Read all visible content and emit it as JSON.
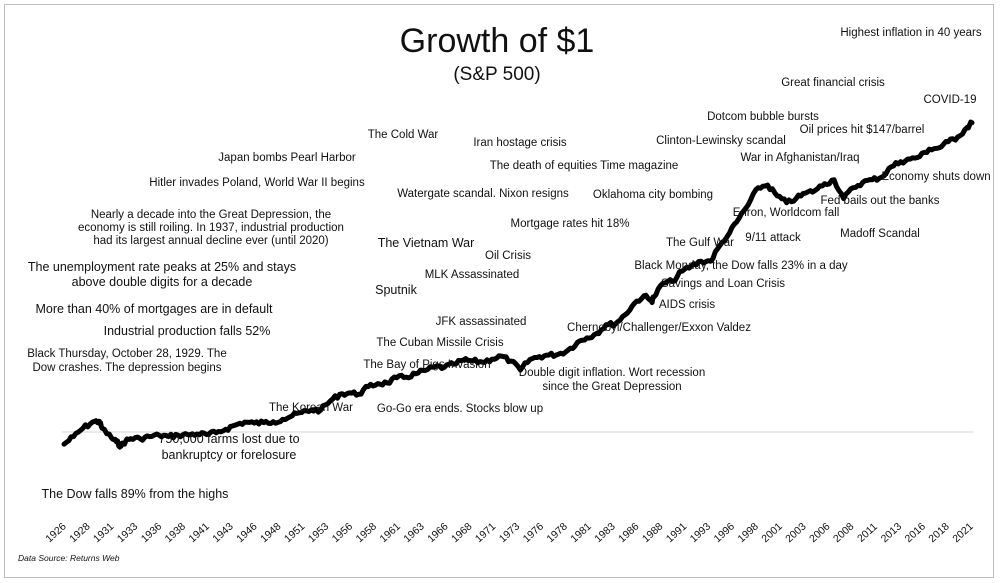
{
  "chart_data": {
    "type": "line",
    "title": "Growth of $1",
    "subtitle": "(S&P 500)",
    "xlabel": "",
    "ylabel": "",
    "grid": false,
    "source": "Data Source: Returns Web",
    "x_tick_labels": [
      "1926",
      "1928",
      "1931",
      "1933",
      "1936",
      "1938",
      "1941",
      "1943",
      "1946",
      "1948",
      "1951",
      "1953",
      "1956",
      "1958",
      "1961",
      "1963",
      "1966",
      "1968",
      "1971",
      "1973",
      "1976",
      "1978",
      "1981",
      "1983",
      "1986",
      "1988",
      "1991",
      "1993",
      "1996",
      "1998",
      "2001",
      "2003",
      "2006",
      "2008",
      "2011",
      "2013",
      "2016",
      "2018",
      "2021"
    ],
    "xlim": [
      1926,
      2021.5
    ],
    "series": [
      {
        "name": "Growth of $1 (S&P 500)",
        "x": [
          1926,
          1927,
          1928,
          1929,
          1929.7,
          1930,
          1931,
          1931.5,
          1932,
          1932.5,
          1933,
          1934,
          1935,
          1936,
          1937,
          1938,
          1939,
          1940,
          1941,
          1942,
          1943,
          1944,
          1945,
          1946,
          1947,
          1948,
          1949,
          1950,
          1951,
          1952,
          1953,
          1954,
          1955,
          1956,
          1957,
          1958,
          1959,
          1960,
          1961,
          1962,
          1963,
          1964,
          1965,
          1966,
          1967,
          1968,
          1969,
          1970,
          1971,
          1972,
          1973,
          1974,
          1975,
          1976,
          1977,
          1978,
          1979,
          1980,
          1981,
          1982,
          1983,
          1984,
          1985,
          1986,
          1987,
          1987.8,
          1988,
          1989,
          1990,
          1991,
          1992,
          1993,
          1994,
          1995,
          1996,
          1997,
          1998,
          1999,
          2000,
          2001,
          2002,
          2003,
          2004,
          2005,
          2006,
          2007,
          2008,
          2009,
          2010,
          2011,
          2012,
          2013,
          2014,
          2015,
          2016,
          2017,
          2018,
          2019,
          2020,
          2021,
          2021.5
        ],
        "values": [
          0.4,
          0.9,
          1.6,
          2.2,
          2.3,
          1.6,
          0.8,
          0.55,
          0.3,
          0.6,
          0.75,
          0.75,
          0.9,
          1.0,
          0.9,
          1.0,
          1.05,
          1.1,
          1.05,
          1.2,
          1.5,
          1.9,
          2.2,
          2.1,
          2.15,
          2.25,
          2.5,
          2.9,
          3.3,
          3.6,
          3.6,
          4.8,
          5.8,
          6.0,
          5.8,
          7.0,
          7.5,
          7.6,
          8.5,
          8.6,
          9.2,
          9.8,
          10.5,
          10.4,
          11.0,
          11.8,
          11.6,
          11.4,
          12.0,
          12.6,
          11.6,
          9.9,
          11.9,
          12.5,
          12.8,
          13.0,
          13.8,
          15.5,
          16.5,
          17.5,
          19.5,
          19.8,
          22.0,
          25.0,
          27.0,
          25.5,
          26.5,
          30.5,
          31.0,
          34.0,
          35.5,
          37.0,
          37.0,
          42.0,
          46.0,
          51.0,
          56.0,
          62.0,
          63.0,
          59.0,
          56.5,
          58.0,
          60.0,
          61.0,
          63.5,
          65.0,
          58.0,
          62.0,
          64.0,
          65.0,
          66.0,
          70.0,
          72.0,
          73.0,
          74.0,
          77.0,
          77.5,
          80.0,
          82.0,
          86.0,
          88.0
        ],
        "y_min": 0,
        "y_max": 90
      }
    ],
    "annotations": [
      {
        "id": "highest-inflation",
        "text": "Highest inflation in 40 years"
      },
      {
        "id": "great-financial-crisis",
        "text": "Great financial crisis"
      },
      {
        "id": "covid",
        "text": "COVID-19"
      },
      {
        "id": "dotcom",
        "text": "Dotcom bubble bursts"
      },
      {
        "id": "oil-147",
        "text": "Oil prices hit $147/barrel"
      },
      {
        "id": "clinton",
        "text": "Clinton-Lewinsky scandal"
      },
      {
        "id": "afghanistan",
        "text": "War in Afghanistan/Iraq"
      },
      {
        "id": "economy-shuts",
        "text": "Economy shuts down"
      },
      {
        "id": "fed-bails",
        "text": "Fed bails out the banks"
      },
      {
        "id": "enron",
        "text": "Enron, Worldcom fall"
      },
      {
        "id": "madoff",
        "text": "Madoff Scandal"
      },
      {
        "id": "sept11",
        "text": "9/11 attack"
      },
      {
        "id": "gulf-war",
        "text": "The Gulf War"
      },
      {
        "id": "cold-war",
        "text": "The Cold War"
      },
      {
        "id": "iran-hostage",
        "text": "Iran hostage crisis"
      },
      {
        "id": "death-equities",
        "text": "The death of equities Time magazine"
      },
      {
        "id": "watergate",
        "text": "Watergate scandal. Nixon resigns"
      },
      {
        "id": "oklahoma",
        "text": "Oklahoma city bombing"
      },
      {
        "id": "mortgage-18",
        "text": "Mortgage rates hit 18%"
      },
      {
        "id": "pearl-harbor",
        "text": "Japan bombs Pearl Harbor"
      },
      {
        "id": "hitler-poland",
        "text": "Hitler invades Poland, World War II begins"
      },
      {
        "id": "decade-depression",
        "lines": [
          "Nearly a decade into the Great Depression, the",
          "economy is still roiling. In 1937, industrial production",
          "had its largest annual decline ever (until 2020)"
        ]
      },
      {
        "id": "vietnam",
        "text": "The Vietnam War"
      },
      {
        "id": "oil-crisis",
        "text": "Oil Crisis"
      },
      {
        "id": "mlk",
        "text": "MLK Assassinated"
      },
      {
        "id": "black-monday",
        "text": "Black Monday, the Dow falls 23% in a day"
      },
      {
        "id": "savings-loan",
        "text": "Savings and Loan Crisis"
      },
      {
        "id": "unemployment",
        "lines": [
          "The unemployment rate peaks at 25% and stays",
          "above double digits for a decade"
        ]
      },
      {
        "id": "sputnik",
        "text": "Sputnik"
      },
      {
        "id": "aids",
        "text": "AIDS crisis"
      },
      {
        "id": "mortgages-default",
        "text": "More than 40% of mortgages are in default"
      },
      {
        "id": "jfk",
        "text": "JFK assassinated"
      },
      {
        "id": "industrial-52",
        "text": "Industrial production falls 52%"
      },
      {
        "id": "chernobyl",
        "text": "Chernobyl/Challenger/Exxon Valdez"
      },
      {
        "id": "cuban-missile",
        "text": "The Cuban Missile Crisis"
      },
      {
        "id": "black-thursday",
        "lines": [
          "Black Thursday, October 28, 1929. The",
          "Dow crashes. The depression begins"
        ]
      },
      {
        "id": "bay-of-pigs",
        "text": "The Bay of Pigs Invasion"
      },
      {
        "id": "double-digit",
        "lines": [
          "Double digit inflation. Wort recession",
          "since the Great Depression"
        ]
      },
      {
        "id": "korean-war",
        "text": "The Korean War"
      },
      {
        "id": "go-go",
        "text": "Go-Go era ends. Stocks blow up"
      },
      {
        "id": "farms-lost",
        "lines": [
          "750,000 farms lost due to",
          "bankruptcy or forelosure"
        ]
      },
      {
        "id": "dow-falls-89",
        "text": "The Dow falls 89% from the highs"
      }
    ]
  }
}
